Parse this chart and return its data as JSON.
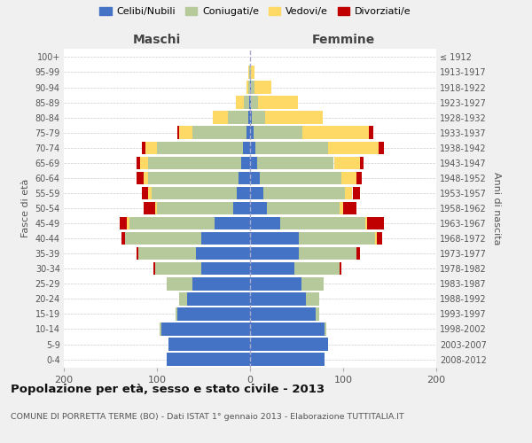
{
  "age_groups": [
    "0-4",
    "5-9",
    "10-14",
    "15-19",
    "20-24",
    "25-29",
    "30-34",
    "35-39",
    "40-44",
    "45-49",
    "50-54",
    "55-59",
    "60-64",
    "65-69",
    "70-74",
    "75-79",
    "80-84",
    "85-89",
    "90-94",
    "95-99",
    "100+"
  ],
  "birth_years": [
    "2008-2012",
    "2003-2007",
    "1998-2002",
    "1993-1997",
    "1988-1992",
    "1983-1987",
    "1978-1982",
    "1973-1977",
    "1968-1972",
    "1963-1967",
    "1958-1962",
    "1953-1957",
    "1948-1952",
    "1943-1947",
    "1938-1942",
    "1933-1937",
    "1928-1932",
    "1923-1927",
    "1918-1922",
    "1913-1917",
    "≤ 1912"
  ],
  "male": {
    "celibi": [
      90,
      88,
      95,
      78,
      68,
      62,
      52,
      58,
      52,
      38,
      18,
      14,
      12,
      10,
      8,
      4,
      2,
      1,
      0,
      0,
      0
    ],
    "coniugati": [
      0,
      0,
      2,
      2,
      8,
      28,
      50,
      62,
      82,
      92,
      82,
      92,
      98,
      100,
      92,
      58,
      22,
      6,
      2,
      1,
      0
    ],
    "vedovi": [
      0,
      0,
      0,
      0,
      0,
      0,
      0,
      0,
      0,
      2,
      2,
      4,
      4,
      8,
      12,
      14,
      16,
      8,
      2,
      1,
      0
    ],
    "divorziati": [
      0,
      0,
      0,
      0,
      0,
      0,
      2,
      2,
      4,
      8,
      12,
      6,
      8,
      4,
      4,
      2,
      0,
      0,
      0,
      0,
      0
    ]
  },
  "female": {
    "nubili": [
      80,
      84,
      80,
      70,
      60,
      55,
      48,
      52,
      52,
      32,
      18,
      14,
      10,
      8,
      6,
      4,
      2,
      1,
      1,
      0,
      0
    ],
    "coniugate": [
      0,
      0,
      2,
      4,
      14,
      24,
      48,
      62,
      82,
      92,
      78,
      88,
      88,
      82,
      78,
      52,
      14,
      8,
      4,
      1,
      0
    ],
    "vedove": [
      0,
      0,
      0,
      0,
      0,
      0,
      0,
      0,
      2,
      2,
      4,
      8,
      16,
      28,
      54,
      72,
      62,
      42,
      18,
      4,
      0
    ],
    "divorziate": [
      0,
      0,
      0,
      0,
      0,
      0,
      2,
      4,
      6,
      18,
      14,
      8,
      6,
      4,
      6,
      4,
      0,
      0,
      0,
      0,
      0
    ]
  },
  "colors": {
    "celibi_nubili": "#4472c4",
    "coniugati": "#b5c99a",
    "vedovi": "#ffd966",
    "divorziati": "#c00000"
  },
  "xlim": 200,
  "title": "Popolazione per età, sesso e stato civile - 2013",
  "subtitle": "COMUNE DI PORRETTA TERME (BO) - Dati ISTAT 1° gennaio 2013 - Elaborazione TUTTITALIA.IT",
  "ylabel_left": "Fasce di età",
  "ylabel_right": "Anni di nascita",
  "xlabel_left": "Maschi",
  "xlabel_right": "Femmine",
  "bg_color": "#f0f0f0",
  "plot_bg": "#ffffff"
}
